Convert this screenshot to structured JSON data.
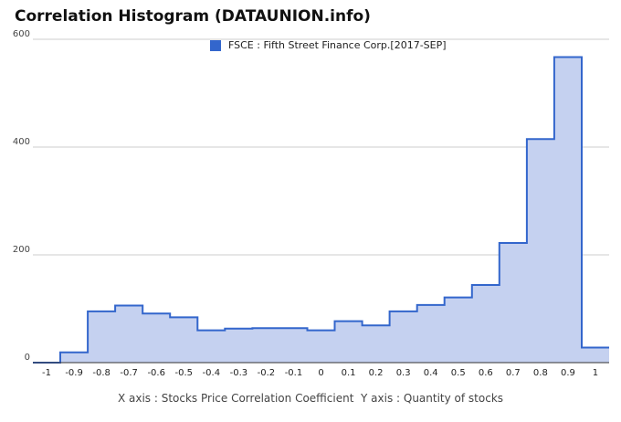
{
  "header": {
    "title": "Correlation Histogram (DATAUNION.info)"
  },
  "legend": {
    "label": "FSCE : Fifth Street Finance Corp.[2017-SEP]"
  },
  "footer": {
    "caption": "X axis : Stocks Price Correlation Coefficient  Y axis : Quantity of stocks"
  },
  "colors": {
    "series": "#3366cc",
    "fill": "#c5d1f0",
    "grid": "#cccccc",
    "baseline": "#333333"
  },
  "chart_data": {
    "type": "area",
    "step": true,
    "x_ticks": [
      "-1",
      "-0.9",
      "-0.8",
      "-0.7",
      "-0.6",
      "-0.5",
      "-0.4",
      "-0.3",
      "-0.2",
      "-0.1",
      "0",
      "0.1",
      "0.2",
      "0.3",
      "0.4",
      "0.5",
      "0.6",
      "0.7",
      "0.8",
      "0.9",
      "1"
    ],
    "y_ticks": [
      0,
      200,
      400,
      600
    ],
    "xlim": [
      -1.05,
      1.05
    ],
    "ylim": [
      0,
      600
    ],
    "grid": true,
    "legend_position": "top-center",
    "series": [
      {
        "name": "FSCE : Fifth Street Finance Corp.[2017-SEP]",
        "x": [
          -1.0,
          -0.9,
          -0.8,
          -0.7,
          -0.6,
          -0.5,
          -0.4,
          -0.3,
          -0.2,
          -0.1,
          0.0,
          0.1,
          0.2,
          0.3,
          0.4,
          0.5,
          0.6,
          0.7,
          0.8,
          0.9,
          1.0
        ],
        "values": [
          0,
          19,
          95,
          106,
          91,
          84,
          60,
          63,
          64,
          64,
          60,
          77,
          69,
          95,
          107,
          121,
          144,
          222,
          415,
          567,
          28
        ]
      }
    ]
  }
}
